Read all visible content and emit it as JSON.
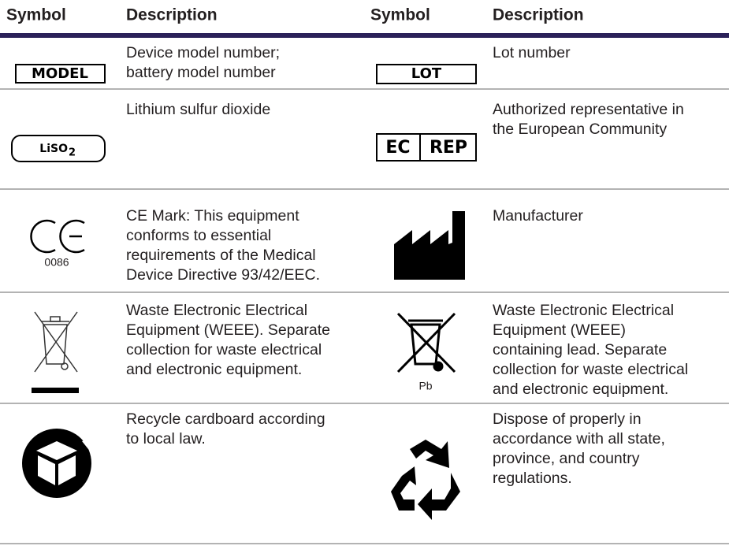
{
  "header": [
    "Symbol",
    "Description",
    "Symbol",
    "Description"
  ],
  "rows": [
    {
      "cells": [
        {
          "symbol": {
            "text": "MODEL"
          },
          "description": [
            "Device model number;",
            "battery model number"
          ]
        },
        {
          "symbol": {
            "text": "LOT"
          },
          "description": [
            "Lot number"
          ]
        }
      ]
    },
    {
      "cells": [
        {
          "symbol": {
            "text": "LiSO",
            "subscript": "2"
          },
          "description": [
            "Lithium sulfur dioxide"
          ]
        },
        {
          "symbol": {
            "left": "EC",
            "right": "REP"
          },
          "description": [
            "Authorized representative in",
            "the European Community"
          ]
        }
      ]
    },
    {
      "cells": [
        {
          "symbol": {
            "text": "0086"
          },
          "description": [
            "CE Mark: This equipment",
            "conforms to essential",
            "requirements of the Medical",
            "Device Directive 93/42/EEC."
          ]
        },
        {
          "description": [
            "Manufacturer"
          ]
        }
      ]
    },
    {
      "cells": [
        {
          "description": [
            "Waste Electronic Electrical",
            "Equipment (WEEE). Separate",
            "collection for waste electrical",
            "and electronic equipment."
          ]
        },
        {
          "symbol": {
            "text": "Pb"
          },
          "description": [
            "Waste Electronic Electrical",
            "Equipment (WEEE)",
            "containing lead. Separate",
            "collection for waste electrical",
            "and electronic equipment."
          ]
        }
      ]
    },
    {
      "cells": [
        {
          "description": [
            "Recycle cardboard according",
            "to local law."
          ]
        },
        {
          "description": [
            "Dispose of properly in",
            "accordance with all state,",
            "province, and country",
            "regulations."
          ]
        }
      ]
    }
  ]
}
